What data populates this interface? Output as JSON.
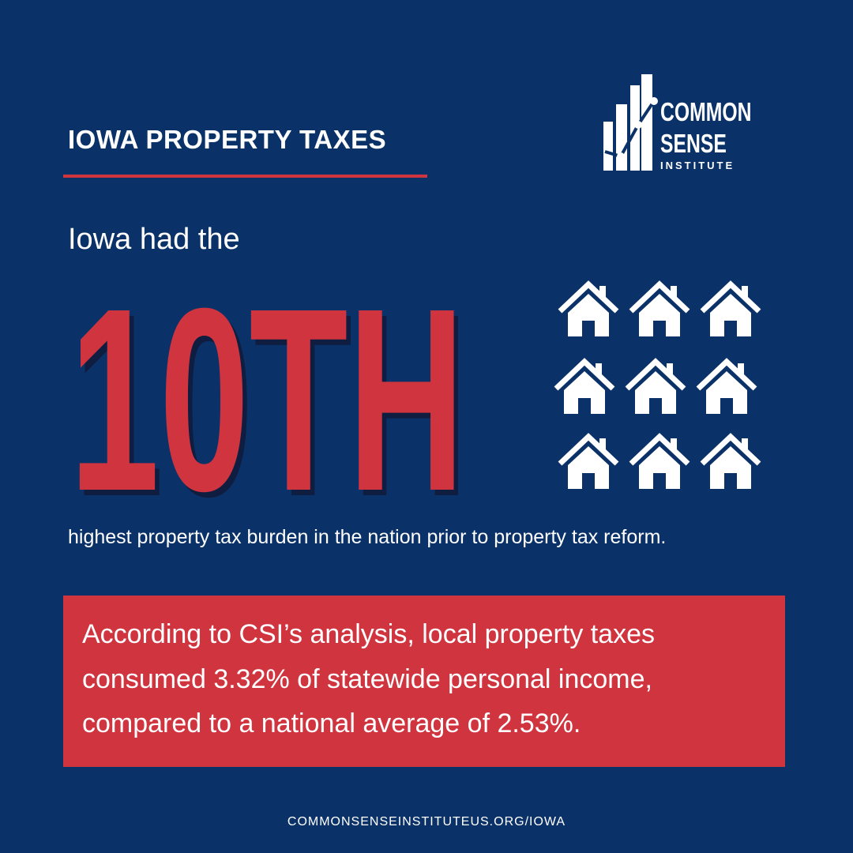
{
  "header": {
    "title": "IOWA PROPERTY TAXES"
  },
  "logo": {
    "lines": [
      "COMMON",
      "SENSE",
      "INSTITUTE"
    ]
  },
  "intro": "Iowa had the",
  "rank": "10TH",
  "rank_caption": "highest property tax burden in the nation prior to property tax reform.",
  "callout": {
    "lines": [
      "According to CSI’s analysis, local property taxes",
      "consumed 3.32% of statewide personal income,",
      "compared to a national average of 2.53%."
    ]
  },
  "footer": {
    "url": "COMMONSENSEINSTITUTEUS.ORG/IOWA"
  }
}
